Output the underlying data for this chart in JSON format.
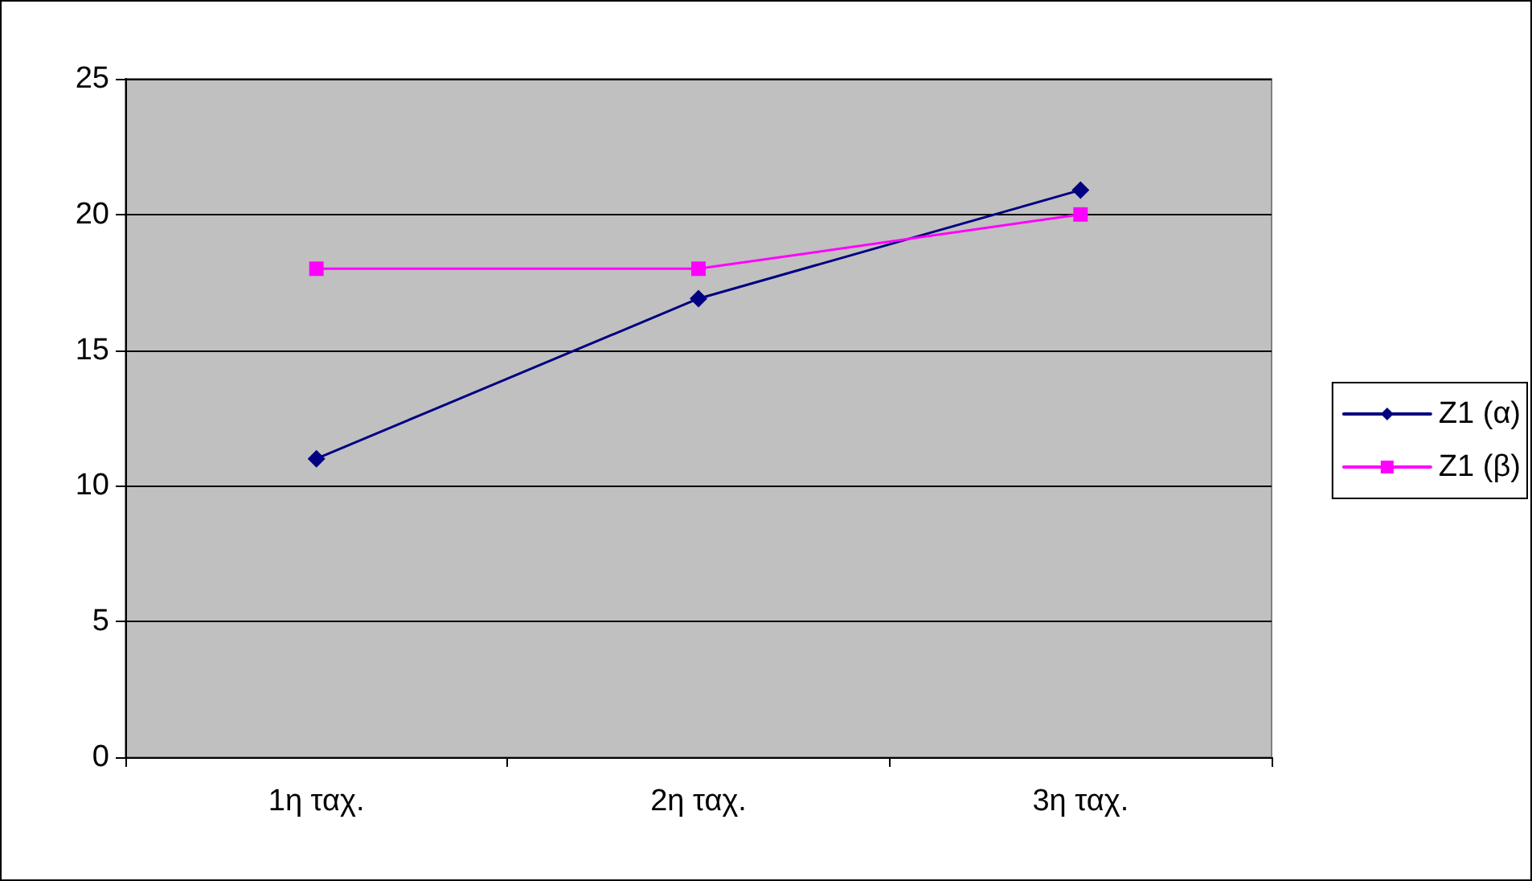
{
  "chart_data": {
    "type": "line",
    "categories": [
      "1η ταχ.",
      "2η ταχ.",
      "3η ταχ."
    ],
    "series": [
      {
        "name": "Z1 (α)",
        "color": "#000080",
        "marker": "diamond",
        "values": [
          11,
          16.9,
          20.9
        ]
      },
      {
        "name": "Z1 (β)",
        "color": "#ff00ff",
        "marker": "square",
        "values": [
          18,
          18,
          20
        ]
      }
    ],
    "ylim": [
      0,
      25
    ],
    "yticks": [
      0,
      5,
      10,
      15,
      20,
      25
    ],
    "grid": "y",
    "legend": "right",
    "line_style": "solid"
  }
}
